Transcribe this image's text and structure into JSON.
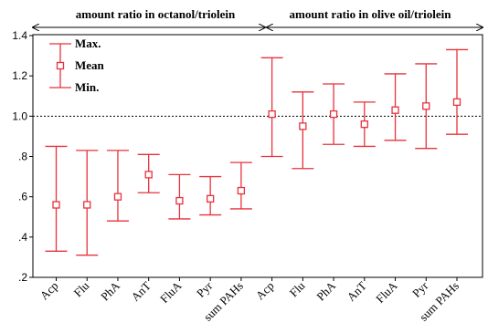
{
  "chart_data": {
    "type": "errorbar",
    "sections": [
      "amount ratio in octanol/triolein",
      "amount ratio in olive oil/triolein"
    ],
    "categories": [
      "Acp",
      "Flu",
      "PhA",
      "AnT",
      "FluA",
      "Pyr",
      "sum PAHs",
      "Acp",
      "Flu",
      "PhA",
      "AnT",
      "FluA",
      "Pyr",
      "sum PAHs"
    ],
    "max": [
      0.85,
      0.83,
      0.83,
      0.81,
      0.71,
      0.7,
      0.77,
      1.29,
      1.12,
      1.16,
      1.07,
      1.21,
      1.26,
      1.33
    ],
    "mean": [
      0.56,
      0.56,
      0.6,
      0.71,
      0.58,
      0.59,
      0.63,
      1.01,
      0.95,
      1.01,
      0.96,
      1.03,
      1.05,
      1.07
    ],
    "min": [
      0.33,
      0.31,
      0.48,
      0.62,
      0.49,
      0.51,
      0.54,
      0.8,
      0.74,
      0.86,
      0.85,
      0.88,
      0.84,
      0.91
    ],
    "ylim": [
      0.2,
      1.4
    ],
    "yticks": [
      ".2",
      ".4",
      ".6",
      ".8",
      "1.0",
      "1.2",
      "1.4"
    ],
    "yticks_values": [
      0.2,
      0.4,
      0.6,
      0.8,
      1.0,
      1.2,
      1.4
    ],
    "reference_line": 1.0,
    "legend": {
      "max_label": "Max.",
      "mean_label": "Mean",
      "min_label": "Min."
    },
    "color": "#e8323c"
  }
}
